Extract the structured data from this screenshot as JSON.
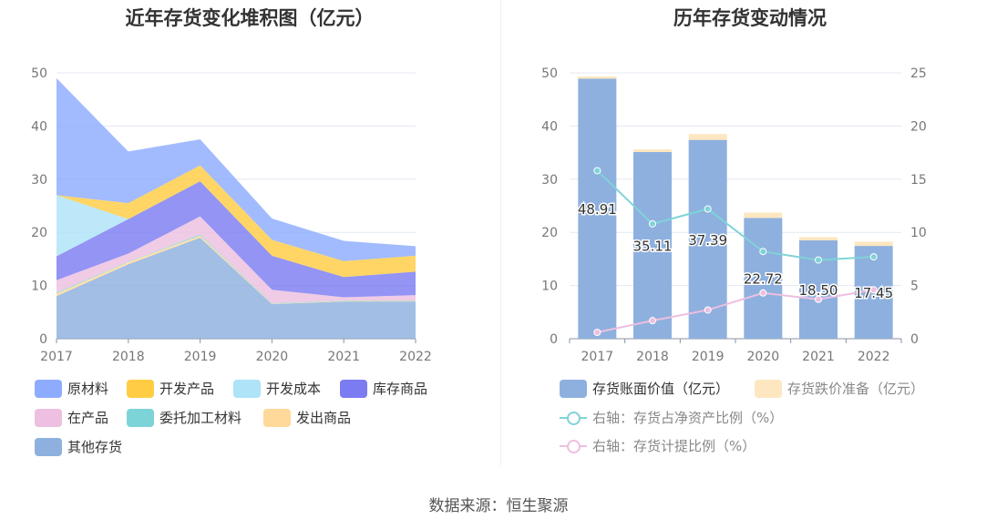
{
  "left_chart": {
    "title": "近年存货变化堆积图（亿元）",
    "legend": [
      {
        "label": "原材料",
        "color": "#8eacff"
      },
      {
        "label": "开发产品",
        "color": "#ffcc44"
      },
      {
        "label": "开发成本",
        "color": "#aee3f8"
      },
      {
        "label": "库存商品",
        "color": "#7b7cf2"
      },
      {
        "label": "在产品",
        "color": "#edbfe0"
      },
      {
        "label": "委托加工材料",
        "color": "#7dd4d8"
      },
      {
        "label": "发出商品",
        "color": "#ffd99a"
      },
      {
        "label": "其他存货",
        "color": "#8eb0de"
      }
    ]
  },
  "right_chart": {
    "title": "历年存货变动情况",
    "legend": [
      {
        "label": "存货账面价值（亿元）",
        "color": "#8eb0de",
        "kind": "box"
      },
      {
        "label": "存货跌价准备（亿元）",
        "color": "#fde7c0",
        "kind": "box"
      },
      {
        "label": "右轴：存货占净资产比例（%）",
        "color": "#7fd3d8",
        "kind": "line"
      },
      {
        "label": "右轴：存货计提比例（%）",
        "color": "#edbfe0",
        "kind": "line"
      }
    ]
  },
  "source": "数据来源：恒生聚源",
  "chart_data": [
    {
      "type": "area",
      "stacked": true,
      "title": "近年存货变化堆积图（亿元）",
      "categories": [
        "2017",
        "2018",
        "2019",
        "2020",
        "2021",
        "2022"
      ],
      "ylim": [
        0,
        50
      ],
      "yticks": [
        0,
        10,
        20,
        30,
        40,
        50
      ],
      "grid": true,
      "legend_position": "bottom",
      "series": [
        {
          "name": "其他存货",
          "values": [
            8.0,
            14.0,
            19.0,
            6.5,
            7.0,
            7.0
          ],
          "color": "#8eb0de"
        },
        {
          "name": "发出商品",
          "values": [
            0.5,
            0.4,
            0.4,
            0.1,
            0.1,
            0.1
          ],
          "color": "#ffd99a"
        },
        {
          "name": "委托加工材料",
          "values": [
            0.2,
            0.1,
            0.2,
            0.1,
            0.1,
            0.1
          ],
          "color": "#7dd4d8"
        },
        {
          "name": "在产品",
          "values": [
            2.3,
            1.5,
            3.4,
            2.5,
            0.6,
            1.0
          ],
          "color": "#edbfe0"
        },
        {
          "name": "库存商品",
          "values": [
            4.5,
            6.5,
            6.6,
            6.4,
            3.8,
            4.4
          ],
          "color": "#7b7cf2"
        },
        {
          "name": "开发成本",
          "values": [
            11.5,
            0.0,
            0.0,
            0.0,
            0.0,
            0.0
          ],
          "color": "#aee3f8"
        },
        {
          "name": "开发产品",
          "values": [
            0.0,
            3.0,
            3.0,
            3.0,
            3.0,
            3.0
          ],
          "color": "#ffcc44"
        },
        {
          "name": "原材料",
          "values": [
            22.0,
            9.7,
            4.9,
            4.0,
            3.8,
            1.8
          ],
          "color": "#8eacff"
        }
      ]
    },
    {
      "type": "bar",
      "stacked": true,
      "title": "历年存货变动情况",
      "categories": [
        "2017",
        "2018",
        "2019",
        "2020",
        "2021",
        "2022"
      ],
      "ylim": [
        0,
        50
      ],
      "yticks": [
        0,
        10,
        20,
        30,
        40,
        50
      ],
      "y2lim": [
        0,
        25
      ],
      "y2ticks": [
        0,
        5,
        10,
        15,
        20,
        25
      ],
      "grid": true,
      "legend_position": "bottom",
      "series": [
        {
          "name": "存货账面价值（亿元）",
          "axis": "left",
          "kind": "bar",
          "values": [
            48.91,
            35.11,
            37.39,
            22.72,
            18.5,
            17.45
          ],
          "labels": [
            "48.91",
            "35.11",
            "37.39",
            "22.72",
            "18.50",
            "17.45"
          ],
          "color": "#8eb0de"
        },
        {
          "name": "存货跌价准备（亿元）",
          "axis": "left",
          "kind": "bar",
          "values": [
            0.4,
            0.5,
            1.1,
            1.0,
            0.6,
            0.8
          ],
          "color": "#fde7c0"
        },
        {
          "name": "右轴：存货占净资产比例（%）",
          "axis": "right",
          "kind": "line",
          "values": [
            15.8,
            10.8,
            12.2,
            8.2,
            7.4,
            7.7
          ],
          "color": "#7fd3d8"
        },
        {
          "name": "右轴：存货计提比例（%）",
          "axis": "right",
          "kind": "line",
          "values": [
            0.6,
            1.7,
            2.7,
            4.3,
            3.7,
            4.6
          ],
          "color": "#edbfe0"
        }
      ]
    }
  ]
}
